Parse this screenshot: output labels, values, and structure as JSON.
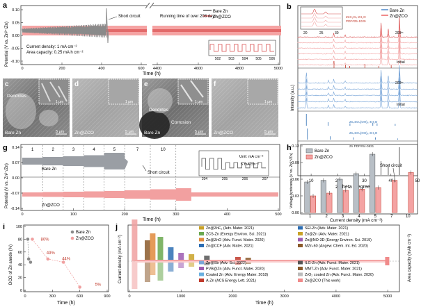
{
  "panels": {
    "a": {
      "letter": "a",
      "ylabel": "Potential (V vs. Zn²⁺/Zn)",
      "xlabel": "Time (h)",
      "legend": [
        "Bare Zn",
        "Zn@ZCO"
      ],
      "ann_short": "Short circuit",
      "ann_running": "Running time of over 208 days",
      "ann_current": "Current density: 1 mA cm⁻²",
      "ann_area": "Area capacity: 0.25 mA h cm⁻²",
      "yticks": [
        "0.10",
        "0.05",
        "0.00",
        "-0.05",
        "-0.10"
      ],
      "xticks": [
        "0",
        "200",
        "400",
        "600",
        "4400",
        "4600",
        "4800",
        "5000"
      ],
      "inset_xticks": [
        "502",
        "503",
        "504",
        "505",
        "506"
      ]
    },
    "b": {
      "letter": "b",
      "ylabel": "Intensity (a.u.)",
      "xlabel": "2 Theta (degree)",
      "legend": [
        "Bare Zn",
        "Zn@ZCO"
      ],
      "ref1": "ZnC₂O₄·2H₂O",
      "ref1_pdf": "PDF#25-1029",
      "ref2": "Zn₄SO₄(OH)₆·4H₂O",
      "ref3": "Zn₄SO₄(OH)₆·3H₂O",
      "ref4": "Zn  PDF#04-0831",
      "label_200_top": "200ᵗʰ",
      "label_initial_top": "Initial",
      "label_200_bottom": "200ᵗʰ",
      "label_initial_bottom": "Initial",
      "xticks": [
        "10",
        "20",
        "30",
        "40",
        "50"
      ],
      "inset_xticks": [
        "20",
        "25",
        "30"
      ]
    },
    "c": {
      "letter": "c",
      "ann": "Dendrites",
      "bottom": "Bare Zn",
      "scale_inset": "1 μm",
      "scale": "5 μm"
    },
    "d": {
      "letter": "d",
      "bottom": "Zn@ZCO",
      "scale_inset": "1 μm",
      "scale": "5 μm"
    },
    "e": {
      "letter": "e",
      "ann1": "Dendrites",
      "ann2": "Corrosion",
      "bottom": "Bare Zn",
      "scale_inset": "1 μm",
      "scale": "5 μm"
    },
    "f": {
      "letter": "f",
      "bottom": "Zn@ZCO",
      "scale_inset": "1 μm",
      "scale": "5 μm"
    },
    "g": {
      "letter": "g",
      "ylabel": "Potential (V vs. Zn²⁺/Zn)",
      "xlabel": "Time (h)",
      "segment_labels": [
        "1",
        "2",
        "3",
        "4",
        "5",
        "7",
        "10",
        "1"
      ],
      "unit": "Unit: mA cm⁻²",
      "inset_label": "5 mA cm⁻²",
      "series_bare": "Bare Zn",
      "series_zco": "Zn@ZCO",
      "ann_short": "Short circuit",
      "yticks": [
        "0.14",
        "0.07",
        "0.00",
        "-0.07",
        "-0.14"
      ],
      "xticks": [
        "0",
        "100",
        "200",
        "300",
        "400",
        "500"
      ],
      "inset_xticks": [
        "204",
        "205",
        "206",
        "207"
      ]
    },
    "h": {
      "letter": "h",
      "ylabel": "Voltage hysteresis (V vs. Zn²⁺/Zn)",
      "xlabel": "Current density (mA cm⁻²)",
      "legend": [
        "Bare Zn",
        "Zn@ZCO"
      ],
      "ann_short": "Short circuit",
      "yticks": [
        "0.00",
        "0.03",
        "0.06",
        "0.09",
        "0.12"
      ]
    },
    "i": {
      "letter": "i",
      "ylabel": "DOD of Zn anode (%)",
      "xlabel": "Time (h)",
      "legend": [
        "Bare Zn",
        "Zn@ZCO"
      ],
      "labels": [
        "80%",
        "49%",
        "44%",
        "5%"
      ],
      "yticks": [
        "0",
        "20",
        "40",
        "60",
        "80",
        "100"
      ],
      "xticks": [
        "0",
        "300",
        "600",
        "900"
      ]
    },
    "j": {
      "letter": "j",
      "ylabel": "Current density (mA cm⁻²)",
      "ylabel2": "Area capacity (mAh cm⁻²)",
      "xlabel": "Time (h)",
      "xticks": [
        "0",
        "1000",
        "2000",
        "3000",
        "4000",
        "5000"
      ],
      "legend_col1": [
        "Zn@ZnF₂ (Adv. Mater. 2021)",
        "ZCS-Zn (Energy Environ. Sci. 2021)",
        "Zn@ZnO (Adv. Funct. Mater. 2020)",
        "Zn@CCF (Adv. Mater. 2021)"
      ],
      "legend_col2": [
        "SEI-Zn (Adv. Mater. 2021)",
        "Zn@Zn (Adv. Mater. 2021)",
        "Zn@NO-3D (Energy Environ. Sci. 2019)",
        "MZn-60 (Angew. Chem. Int. Ed. 2020)"
      ],
      "legend_col3": [
        "Zn@Sb (Adv. Sci. 2022)",
        "PVB@Zn (Adv. Funct. Mater. 2020)",
        "Coated Zn (Adv. Energy Mater. 2018)",
        "A-Zn (ACS Energy Lett. 2021)"
      ],
      "legend_col4": [
        "ILG-Zn (Adv. Funct. Mater. 2021)",
        "MMT-Zn (Adv. Funct. Mater. 2021)",
        "ZrO₂ coated Zn (Adv. Funct. Mater. 2020)",
        "Zn@ZCO (This work)"
      ]
    }
  },
  "chart_data": [
    {
      "panel": "h",
      "type": "bar",
      "categories": [
        "1",
        "2",
        "3",
        "4",
        "5",
        "7",
        "10"
      ],
      "series": [
        {
          "name": "Bare Zn",
          "values": [
            0.055,
            0.058,
            0.06,
            0.07,
            0.105,
            null,
            null
          ]
        },
        {
          "name": "Zn@ZCO",
          "values": [
            0.03,
            0.035,
            0.04,
            0.042,
            0.045,
            0.058,
            0.072
          ]
        }
      ],
      "ylim": [
        0,
        0.12
      ],
      "xlabel": "Current density (mA cm⁻²)",
      "ylabel": "Voltage hysteresis (V vs. Zn²⁺/Zn)"
    },
    {
      "panel": "i",
      "type": "scatter",
      "series": [
        {
          "name": "Bare Zn",
          "points": [
            [
              30,
              80
            ],
            [
              40,
              49
            ],
            [
              60,
              44
            ]
          ]
        },
        {
          "name": "Zn@ZCO",
          "points": [
            [
              80,
              80
            ],
            [
              250,
              49
            ],
            [
              420,
              44
            ],
            [
              600,
              5
            ]
          ]
        }
      ],
      "xlim": [
        0,
        900
      ],
      "ylim": [
        0,
        100
      ],
      "xlabel": "Time (h)",
      "ylabel": "DOD of Zn anode (%)"
    }
  ]
}
